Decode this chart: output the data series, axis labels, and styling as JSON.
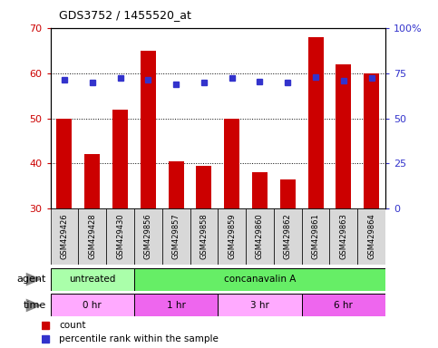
{
  "title": "GDS3752 / 1455520_at",
  "samples": [
    "GSM429426",
    "GSM429428",
    "GSM429430",
    "GSM429856",
    "GSM429857",
    "GSM429858",
    "GSM429859",
    "GSM429860",
    "GSM429862",
    "GSM429861",
    "GSM429863",
    "GSM429864"
  ],
  "counts": [
    50,
    42,
    52,
    65,
    40.5,
    39.5,
    50,
    38,
    36.5,
    68,
    62,
    60
  ],
  "percentile_ranks": [
    71.5,
    70,
    72.5,
    71.5,
    69,
    70,
    72.5,
    70.5,
    70,
    73,
    71,
    72.5
  ],
  "left_ylim": [
    30,
    70
  ],
  "left_yticks": [
    30,
    40,
    50,
    60,
    70
  ],
  "right_ylim": [
    0,
    100
  ],
  "right_yticks": [
    0,
    25,
    50,
    75,
    100
  ],
  "right_yticklabels": [
    "0",
    "25",
    "50",
    "75",
    "100%"
  ],
  "bar_color": "#cc0000",
  "dot_color": "#3333cc",
  "agent_groups": [
    {
      "label": "untreated",
      "start": 0,
      "end": 3,
      "color": "#aaffaa"
    },
    {
      "label": "concanavalin A",
      "start": 3,
      "end": 12,
      "color": "#66ee66"
    }
  ],
  "time_groups": [
    {
      "label": "0 hr",
      "start": 0,
      "end": 3,
      "color": "#ffaaff"
    },
    {
      "label": "1 hr",
      "start": 3,
      "end": 6,
      "color": "#ee66ee"
    },
    {
      "label": "3 hr",
      "start": 6,
      "end": 9,
      "color": "#ffaaff"
    },
    {
      "label": "6 hr",
      "start": 9,
      "end": 12,
      "color": "#ee66ee"
    }
  ],
  "xlabel_color": "#cc0000",
  "ylabel_right_color": "#3333cc",
  "grid_yticks": [
    40,
    50,
    60
  ]
}
